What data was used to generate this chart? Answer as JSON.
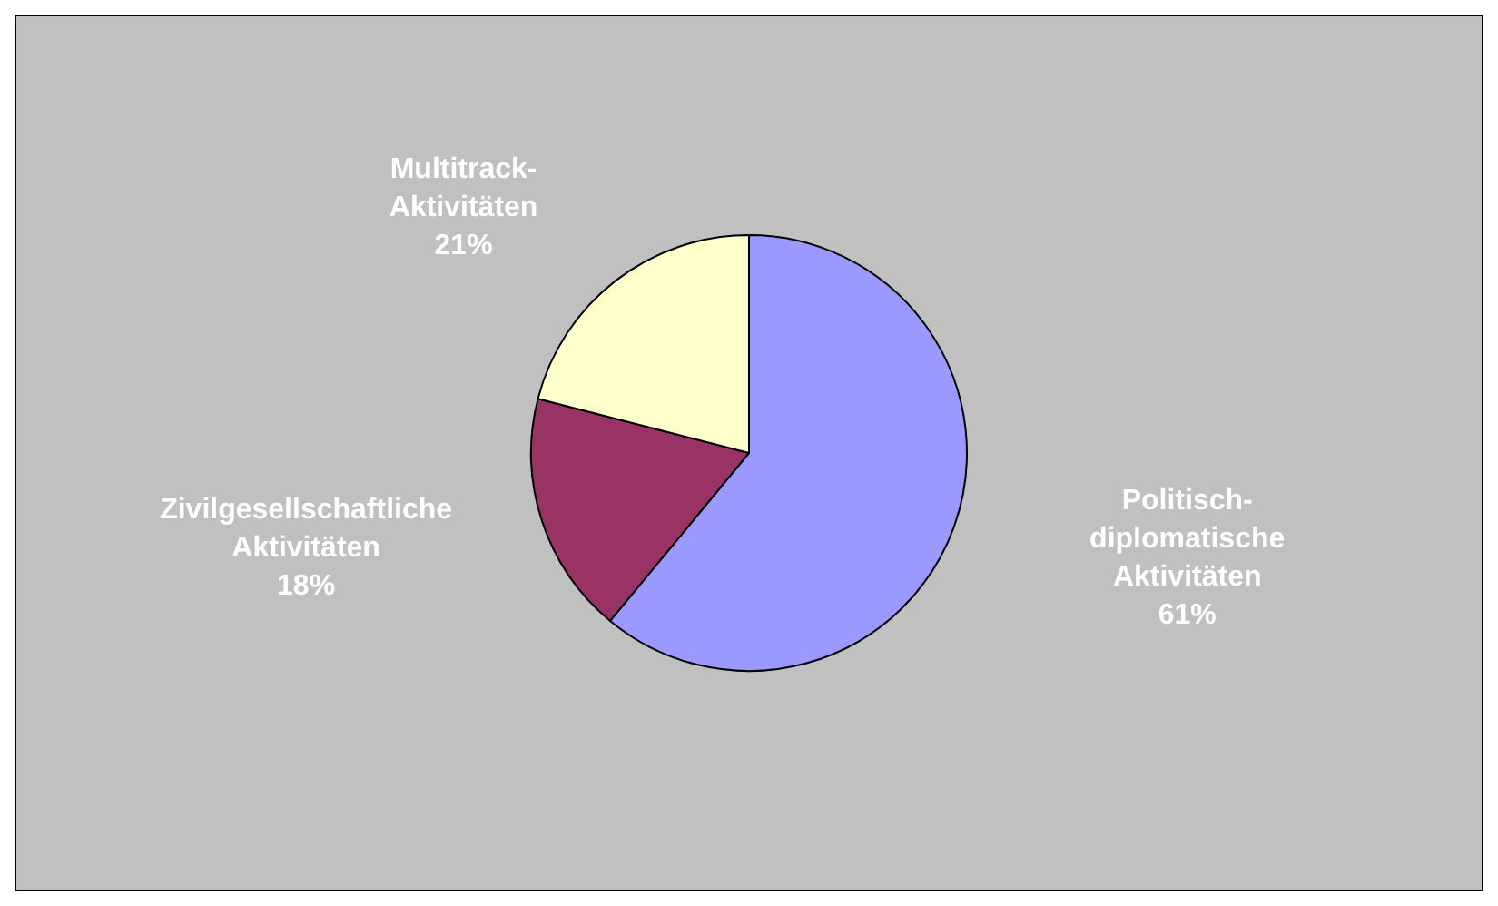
{
  "chart_data": {
    "type": "pie",
    "categories": [
      "Politisch-diplomatische Aktivitäten",
      "Zivilgesellschaftliche Aktivitäten",
      "Multitrack-Aktivitäten"
    ],
    "values": [
      61,
      18,
      21
    ],
    "colors": [
      "#9999ff",
      "#993366",
      "#ffffcc"
    ],
    "value_labels": [
      "61%",
      "18%",
      "21%"
    ],
    "legend": false
  }
}
